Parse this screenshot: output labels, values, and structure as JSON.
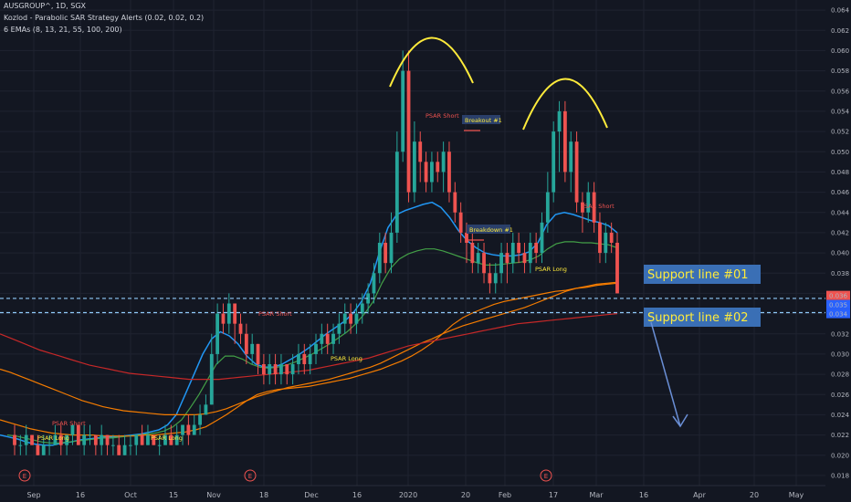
{
  "header": {
    "symbol": "AUSGROUP^, 1D, SGX",
    "indicator1": "Kozlod - Parabolic SAR Strategy Alerts (0.02, 0.02, 0.2)",
    "indicator2": "6 EMAs (8, 13, 21, 55, 100, 200)"
  },
  "colors": {
    "background": "#131722",
    "grid": "#1f2330",
    "up": "#26a69a",
    "down": "#ef5350",
    "ema_blue": "#2196f3",
    "ema_green": "#43a047",
    "ema_orange": "#f57c00",
    "ema_red": "#c62828",
    "arc": "#ffeb3b",
    "support_line": "#90caf9",
    "arrow": "#6a8fd6",
    "price_tag_red": "#ef5350",
    "price_tag_blue": "#2962ff",
    "support_box": "#3a6fb5"
  },
  "chart_data": {
    "type": "candlestick",
    "ylim": [
      0.017,
      0.065
    ],
    "y_ticks": [
      "0.018",
      "0.020",
      "0.022",
      "0.024",
      "0.026",
      "0.028",
      "0.030",
      "0.032",
      "0.034",
      "0.036",
      "0.038",
      "0.040",
      "0.042",
      "0.044",
      "0.046",
      "0.048",
      "0.050",
      "0.052",
      "0.054",
      "0.056",
      "0.058",
      "0.060",
      "0.062",
      "0.064"
    ],
    "x_ticks": [
      "Sep",
      "16",
      "Oct",
      "15",
      "Nov",
      "18",
      "Dec",
      "16",
      "2020",
      "20",
      "Feb",
      "17",
      "Mar",
      "16",
      "Apr",
      "20",
      "May"
    ],
    "price_tags": [
      "0.036",
      "0.035",
      "0.034"
    ],
    "candles": [
      [
        0.022,
        0.021,
        0.023,
        0.02
      ],
      [
        0.021,
        0.021,
        0.022,
        0.02
      ],
      [
        0.021,
        0.022,
        0.023,
        0.02
      ],
      [
        0.022,
        0.021,
        0.022,
        0.021
      ],
      [
        0.021,
        0.02,
        0.022,
        0.02
      ],
      [
        0.02,
        0.021,
        0.022,
        0.02
      ],
      [
        0.021,
        0.021,
        0.022,
        0.02
      ],
      [
        0.021,
        0.022,
        0.023,
        0.021
      ],
      [
        0.022,
        0.021,
        0.023,
        0.02
      ],
      [
        0.021,
        0.022,
        0.022,
        0.02
      ],
      [
        0.022,
        0.023,
        0.023,
        0.021
      ],
      [
        0.023,
        0.021,
        0.023,
        0.021
      ],
      [
        0.021,
        0.022,
        0.023,
        0.02
      ],
      [
        0.022,
        0.022,
        0.023,
        0.021
      ],
      [
        0.022,
        0.021,
        0.022,
        0.02
      ],
      [
        0.021,
        0.022,
        0.023,
        0.02
      ],
      [
        0.022,
        0.021,
        0.022,
        0.02
      ],
      [
        0.021,
        0.021,
        0.022,
        0.02
      ],
      [
        0.021,
        0.02,
        0.022,
        0.02
      ],
      [
        0.02,
        0.021,
        0.022,
        0.02
      ],
      [
        0.021,
        0.021,
        0.022,
        0.02
      ],
      [
        0.021,
        0.022,
        0.022,
        0.02
      ],
      [
        0.022,
        0.021,
        0.023,
        0.021
      ],
      [
        0.021,
        0.022,
        0.023,
        0.021
      ],
      [
        0.022,
        0.021,
        0.022,
        0.021
      ],
      [
        0.021,
        0.021,
        0.022,
        0.02
      ],
      [
        0.021,
        0.022,
        0.023,
        0.021
      ],
      [
        0.022,
        0.021,
        0.023,
        0.021
      ],
      [
        0.021,
        0.022,
        0.023,
        0.021
      ],
      [
        0.022,
        0.023,
        0.023,
        0.021
      ],
      [
        0.023,
        0.022,
        0.024,
        0.021
      ],
      [
        0.022,
        0.023,
        0.024,
        0.022
      ],
      [
        0.023,
        0.024,
        0.025,
        0.022
      ],
      [
        0.024,
        0.025,
        0.026,
        0.024
      ],
      [
        0.025,
        0.03,
        0.032,
        0.025
      ],
      [
        0.03,
        0.034,
        0.035,
        0.029
      ],
      [
        0.034,
        0.033,
        0.035,
        0.032
      ],
      [
        0.033,
        0.035,
        0.036,
        0.032
      ],
      [
        0.035,
        0.033,
        0.035,
        0.031
      ],
      [
        0.033,
        0.032,
        0.034,
        0.031
      ],
      [
        0.032,
        0.03,
        0.033,
        0.029
      ],
      [
        0.03,
        0.031,
        0.032,
        0.029
      ],
      [
        0.031,
        0.029,
        0.031,
        0.028
      ],
      [
        0.029,
        0.028,
        0.03,
        0.027
      ],
      [
        0.028,
        0.029,
        0.03,
        0.027
      ],
      [
        0.029,
        0.028,
        0.03,
        0.027
      ],
      [
        0.028,
        0.029,
        0.03,
        0.027
      ],
      [
        0.029,
        0.028,
        0.029,
        0.027
      ],
      [
        0.028,
        0.029,
        0.03,
        0.027
      ],
      [
        0.029,
        0.03,
        0.031,
        0.028
      ],
      [
        0.03,
        0.029,
        0.031,
        0.028
      ],
      [
        0.029,
        0.03,
        0.031,
        0.028
      ],
      [
        0.03,
        0.031,
        0.032,
        0.029
      ],
      [
        0.031,
        0.032,
        0.033,
        0.03
      ],
      [
        0.032,
        0.031,
        0.033,
        0.03
      ],
      [
        0.031,
        0.032,
        0.033,
        0.03
      ],
      [
        0.032,
        0.033,
        0.034,
        0.031
      ],
      [
        0.033,
        0.034,
        0.035,
        0.032
      ],
      [
        0.034,
        0.033,
        0.035,
        0.032
      ],
      [
        0.033,
        0.034,
        0.035,
        0.032
      ],
      [
        0.034,
        0.035,
        0.036,
        0.033
      ],
      [
        0.035,
        0.036,
        0.037,
        0.034
      ],
      [
        0.036,
        0.038,
        0.039,
        0.035
      ],
      [
        0.038,
        0.041,
        0.042,
        0.037
      ],
      [
        0.041,
        0.039,
        0.042,
        0.038
      ],
      [
        0.039,
        0.042,
        0.044,
        0.038
      ],
      [
        0.042,
        0.05,
        0.052,
        0.041
      ],
      [
        0.05,
        0.058,
        0.06,
        0.049
      ],
      [
        0.058,
        0.046,
        0.06,
        0.045
      ],
      [
        0.046,
        0.051,
        0.053,
        0.045
      ],
      [
        0.051,
        0.049,
        0.052,
        0.047
      ],
      [
        0.049,
        0.047,
        0.05,
        0.046
      ],
      [
        0.047,
        0.049,
        0.05,
        0.046
      ],
      [
        0.049,
        0.048,
        0.05,
        0.047
      ],
      [
        0.048,
        0.05,
        0.051,
        0.046
      ],
      [
        0.05,
        0.046,
        0.051,
        0.045
      ],
      [
        0.046,
        0.044,
        0.047,
        0.043
      ],
      [
        0.044,
        0.042,
        0.045,
        0.041
      ],
      [
        0.042,
        0.041,
        0.043,
        0.039
      ],
      [
        0.041,
        0.039,
        0.042,
        0.038
      ],
      [
        0.039,
        0.04,
        0.041,
        0.038
      ],
      [
        0.04,
        0.038,
        0.041,
        0.037
      ],
      [
        0.038,
        0.037,
        0.039,
        0.036
      ],
      [
        0.037,
        0.038,
        0.039,
        0.036
      ],
      [
        0.038,
        0.04,
        0.041,
        0.037
      ],
      [
        0.04,
        0.039,
        0.041,
        0.037
      ],
      [
        0.039,
        0.041,
        0.042,
        0.038
      ],
      [
        0.041,
        0.04,
        0.042,
        0.039
      ],
      [
        0.04,
        0.039,
        0.041,
        0.038
      ],
      [
        0.039,
        0.041,
        0.042,
        0.038
      ],
      [
        0.041,
        0.04,
        0.042,
        0.039
      ],
      [
        0.04,
        0.043,
        0.044,
        0.039
      ],
      [
        0.043,
        0.046,
        0.048,
        0.042
      ],
      [
        0.046,
        0.052,
        0.053,
        0.045
      ],
      [
        0.052,
        0.054,
        0.055,
        0.048
      ],
      [
        0.054,
        0.048,
        0.055,
        0.047
      ],
      [
        0.048,
        0.051,
        0.052,
        0.046
      ],
      [
        0.051,
        0.045,
        0.052,
        0.044
      ],
      [
        0.045,
        0.044,
        0.046,
        0.042
      ],
      [
        0.044,
        0.046,
        0.047,
        0.043
      ],
      [
        0.046,
        0.043,
        0.047,
        0.042
      ],
      [
        0.043,
        0.04,
        0.044,
        0.039
      ],
      [
        0.04,
        0.042,
        0.043,
        0.039
      ],
      [
        0.042,
        0.041,
        0.043,
        0.04
      ],
      [
        0.041,
        0.036,
        0.042,
        0.036
      ]
    ],
    "ema_series": [
      {
        "values": [
          0.022,
          0.0218,
          0.0216,
          0.0213,
          0.0211,
          0.021,
          0.021,
          0.0212,
          0.0213,
          0.0215,
          0.0216,
          0.0217,
          0.0218,
          0.0218,
          0.0219,
          0.022,
          0.0221,
          0.0223,
          0.0225,
          0.023,
          0.024,
          0.026,
          0.028,
          0.03,
          0.0315,
          0.0322,
          0.0318,
          0.031,
          0.0298,
          0.029,
          0.0287,
          0.0287,
          0.029,
          0.0295,
          0.03,
          0.0306,
          0.0313,
          0.032,
          0.0326,
          0.0332,
          0.034,
          0.0352,
          0.037,
          0.04,
          0.0425,
          0.0438,
          0.0442,
          0.0445,
          0.0448,
          0.045,
          0.0445,
          0.0435,
          0.0422,
          0.0412,
          0.0405,
          0.04,
          0.0398,
          0.0397,
          0.0397,
          0.0398,
          0.0401,
          0.041,
          0.0428,
          0.0438,
          0.044,
          0.0438,
          0.0435,
          0.0432,
          0.043,
          0.0427,
          0.042
        ]
      },
      {
        "values": [
          0.022,
          0.0219,
          0.0217,
          0.0215,
          0.0213,
          0.0212,
          0.0212,
          0.0213,
          0.0214,
          0.0215,
          0.0216,
          0.0217,
          0.0217,
          0.0218,
          0.0219,
          0.022,
          0.0221,
          0.0222,
          0.0224,
          0.0228,
          0.0235,
          0.0247,
          0.026,
          0.0275,
          0.029,
          0.0298,
          0.0298,
          0.0295,
          0.029,
          0.0287,
          0.0286,
          0.0287,
          0.0289,
          0.0292,
          0.0296,
          0.03,
          0.0305,
          0.031,
          0.0316,
          0.0322,
          0.033,
          0.034,
          0.0352,
          0.037,
          0.0385,
          0.0394,
          0.0399,
          0.0402,
          0.0404,
          0.0404,
          0.0402,
          0.0399,
          0.0396,
          0.0393,
          0.039,
          0.0388,
          0.0388,
          0.0389,
          0.039,
          0.0391,
          0.0393,
          0.0397,
          0.0404,
          0.0409,
          0.0411,
          0.0411,
          0.041,
          0.041,
          0.0409,
          0.0408,
          0.0405
        ]
      },
      {
        "values": [
          0.0235,
          0.0232,
          0.0229,
          0.0226,
          0.0224,
          0.0222,
          0.0221,
          0.022,
          0.022,
          0.022,
          0.0219,
          0.0219,
          0.0219,
          0.0219,
          0.022,
          0.022,
          0.0221,
          0.0222,
          0.0223,
          0.0225,
          0.0228,
          0.0234,
          0.024,
          0.0247,
          0.0254,
          0.026,
          0.0263,
          0.0265,
          0.0266,
          0.0267,
          0.0268,
          0.027,
          0.0272,
          0.0274,
          0.0276,
          0.0279,
          0.0282,
          0.0285,
          0.0289,
          0.0293,
          0.0298,
          0.0304,
          0.0311,
          0.032,
          0.0329,
          0.0336,
          0.0341,
          0.0345,
          0.0349,
          0.0352,
          0.0354,
          0.0356,
          0.0358,
          0.036,
          0.0362,
          0.0363,
          0.0365,
          0.0366,
          0.0368,
          0.0369,
          0.037
        ]
      },
      {
        "values": [
          0.0285,
          0.0282,
          0.0278,
          0.0274,
          0.027,
          0.0266,
          0.0262,
          0.0258,
          0.0254,
          0.0251,
          0.0248,
          0.0246,
          0.0244,
          0.0243,
          0.0242,
          0.0241,
          0.024,
          0.024,
          0.024,
          0.024,
          0.0241,
          0.0243,
          0.0246,
          0.025,
          0.0254,
          0.0258,
          0.0261,
          0.0264,
          0.0267,
          0.0269,
          0.0271,
          0.0273,
          0.0275,
          0.0278,
          0.0281,
          0.0284,
          0.0287,
          0.0291,
          0.0296,
          0.0301,
          0.0306,
          0.0311,
          0.0315,
          0.032,
          0.0324,
          0.0328,
          0.0331,
          0.0334,
          0.0337,
          0.034,
          0.0343,
          0.0346,
          0.035,
          0.0354,
          0.0358,
          0.0362,
          0.0365,
          0.0367,
          0.0369,
          0.037,
          0.0371
        ]
      },
      {
        "values": [
          0.032,
          0.0316,
          0.0312,
          0.0308,
          0.0304,
          0.0301,
          0.0298,
          0.0295,
          0.0292,
          0.0289,
          0.0287,
          0.0285,
          0.0283,
          0.0281,
          0.028,
          0.0279,
          0.0278,
          0.0277,
          0.0276,
          0.0275,
          0.0275,
          0.0275,
          0.0275,
          0.0276,
          0.0277,
          0.0278,
          0.0279,
          0.028,
          0.0281,
          0.0282,
          0.0283,
          0.0284,
          0.0286,
          0.0288,
          0.029,
          0.0292,
          0.0294,
          0.0296,
          0.0299,
          0.0302,
          0.0305,
          0.0308,
          0.031,
          0.0312,
          0.0314,
          0.0316,
          0.0318,
          0.032,
          0.0322,
          0.0324,
          0.0326,
          0.0328,
          0.033,
          0.0331,
          0.0332,
          0.0333,
          0.0334,
          0.0335,
          0.0336,
          0.0337,
          0.0338,
          0.0339,
          0.034
        ]
      }
    ],
    "annotations": [
      {
        "text": "PSAR Long",
        "kind": "long"
      },
      {
        "text": "PSAR Short",
        "kind": "short"
      },
      {
        "text": "PSAR Long",
        "kind": "long"
      },
      {
        "text": "PSAR Short",
        "kind": "short"
      },
      {
        "text": "PSAR Long",
        "kind": "long"
      },
      {
        "text": "PSAR Short",
        "kind": "short"
      },
      {
        "text": "PSAR Long",
        "kind": "long"
      },
      {
        "text": "PSAR Short",
        "kind": "short"
      }
    ],
    "breakout_label": "Breakout #1",
    "breakdown_label": "Breakdown #1",
    "support1_label": "Support line #01",
    "support2_label": "Support line #02",
    "event_marker": "E"
  }
}
